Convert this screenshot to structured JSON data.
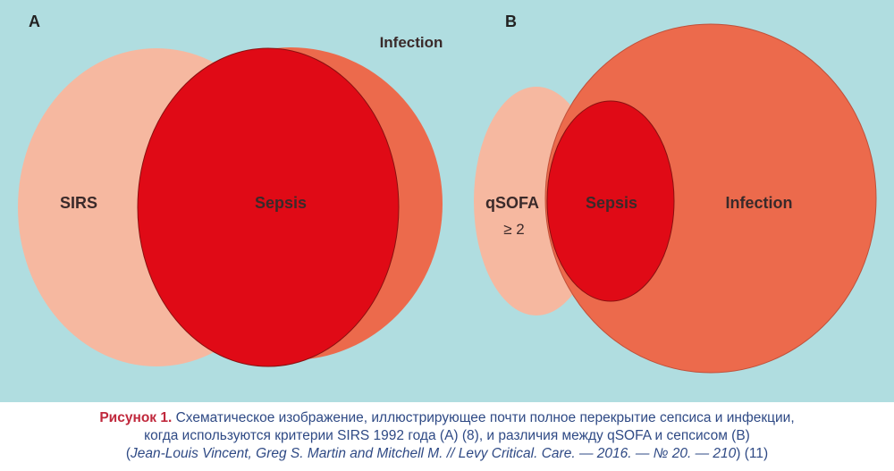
{
  "figure": {
    "panel_a": {
      "letter": "A",
      "labels": {
        "infection": "Infection",
        "sirs": "SIRS",
        "sepsis": "Sepsis"
      }
    },
    "panel_b": {
      "letter": "B",
      "labels": {
        "qsofa": "qSOFA",
        "qsofa_threshold": "≥ 2",
        "sepsis": "Sepsis",
        "infection": "Infection"
      }
    },
    "colors": {
      "background": "#b0dde0",
      "light_salmon": "#f6b8a0",
      "orange_red": "#ec6a4c",
      "sepsis_red": "#e00a16"
    }
  },
  "caption": {
    "label": "Рисунок 1.",
    "line1": "Схематическое изображение, иллюстрирующее почти полное перекрытие сепсиса и инфекции,",
    "line2": "когда используются критерии SIRS 1992 года (А) (8), и различия между qSOFA и сепсисом (B)",
    "line3_open": "(",
    "line3_citation": "Jean-Louis Vincent, Greg S. Martin and Mitchell M. // Levy Critical. Care. — 2016. — № 20. — 210",
    "line3_close": ") (11)"
  }
}
